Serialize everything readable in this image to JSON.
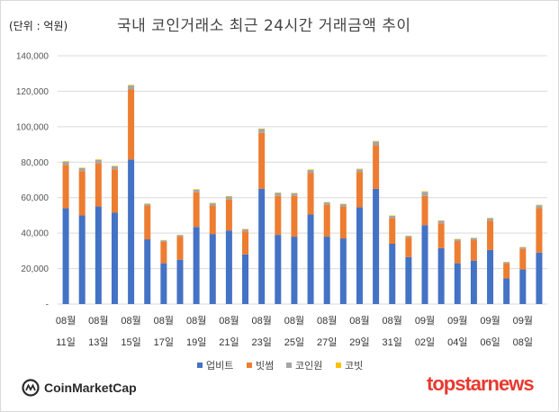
{
  "header": {
    "unit": "(단위 : 억원)",
    "title": "국내 코인거래소 최근 24시간 거래금액 추이"
  },
  "chart_data": {
    "type": "bar",
    "stacked": true,
    "title": "국내 코인거래소 최근 24시간 거래금액 추이",
    "unit_label": "(단위 : 억원)",
    "ylim": [
      0,
      140000
    ],
    "yticks": [
      0,
      20000,
      40000,
      60000,
      80000,
      100000,
      120000,
      140000
    ],
    "ytick_labels": [
      "-",
      "20,000",
      "40,000",
      "60,000",
      "80,000",
      "100,000",
      "120,000",
      "140,000"
    ],
    "grid": true,
    "legend_position": "bottom",
    "categories": [
      "08-11",
      "08-12",
      "08-13",
      "08-14",
      "08-15",
      "08-16",
      "08-17",
      "08-18",
      "08-19",
      "08-20",
      "08-21",
      "08-22",
      "08-23",
      "08-24",
      "08-25",
      "08-26",
      "08-27",
      "08-28",
      "08-29",
      "08-30",
      "08-31",
      "09-01",
      "09-02",
      "09-03",
      "09-04",
      "09-05",
      "09-06",
      "09-07",
      "09-08",
      "09-09"
    ],
    "x_tick_labels": [
      {
        "index": 0,
        "month": "08월",
        "day": "11일"
      },
      {
        "index": 2,
        "month": "08월",
        "day": "13일"
      },
      {
        "index": 4,
        "month": "08월",
        "day": "15일"
      },
      {
        "index": 6,
        "month": "08월",
        "day": "17일"
      },
      {
        "index": 8,
        "month": "08월",
        "day": "19일"
      },
      {
        "index": 10,
        "month": "08월",
        "day": "21일"
      },
      {
        "index": 12,
        "month": "08월",
        "day": "23일"
      },
      {
        "index": 14,
        "month": "08월",
        "day": "25일"
      },
      {
        "index": 16,
        "month": "08월",
        "day": "27일"
      },
      {
        "index": 18,
        "month": "08월",
        "day": "29일"
      },
      {
        "index": 20,
        "month": "08월",
        "day": "31일"
      },
      {
        "index": 22,
        "month": "09월",
        "day": "02일"
      },
      {
        "index": 24,
        "month": "09월",
        "day": "04일"
      },
      {
        "index": 26,
        "month": "09월",
        "day": "06일"
      },
      {
        "index": 28,
        "month": "09월",
        "day": "08일"
      }
    ],
    "series": [
      {
        "name": "업비트",
        "color": "#4472c4",
        "values": [
          54000,
          50000,
          55000,
          51500,
          81500,
          36500,
          23000,
          25000,
          43500,
          39500,
          41500,
          28000,
          65000,
          39000,
          38000,
          50500,
          38000,
          37000,
          54500,
          65000,
          34000,
          26500,
          44500,
          31500,
          23000,
          24500,
          30500,
          14500,
          19500,
          29000
        ]
      },
      {
        "name": "빗썸",
        "color": "#ed7d31",
        "values": [
          24500,
          25000,
          24500,
          24500,
          39500,
          19000,
          12000,
          13000,
          19500,
          16000,
          17500,
          13000,
          31500,
          22000,
          23000,
          23500,
          18000,
          18000,
          20000,
          24500,
          14500,
          11000,
          16500,
          14000,
          12500,
          11500,
          16500,
          8500,
          11500,
          25000
        ]
      },
      {
        "name": "코인원",
        "color": "#a5a5a5",
        "values": [
          1800,
          1600,
          1800,
          1700,
          2300,
          1000,
          900,
          800,
          1500,
          1400,
          1600,
          1200,
          2200,
          1700,
          1500,
          1600,
          1300,
          1300,
          1500,
          2200,
          1300,
          900,
          2300,
          1500,
          1000,
          1200,
          1400,
          700,
          1000,
          1700
        ]
      },
      {
        "name": "코빗",
        "color": "#ffc000",
        "values": [
          300,
          300,
          300,
          300,
          300,
          200,
          200,
          200,
          300,
          200,
          300,
          200,
          300,
          200,
          200,
          300,
          200,
          200,
          300,
          300,
          200,
          200,
          300,
          200,
          200,
          200,
          200,
          100,
          200,
          300
        ]
      }
    ]
  },
  "footer": {
    "coinmarketcap": "CoinMarketCap",
    "topstarnews": "topstarnews"
  }
}
